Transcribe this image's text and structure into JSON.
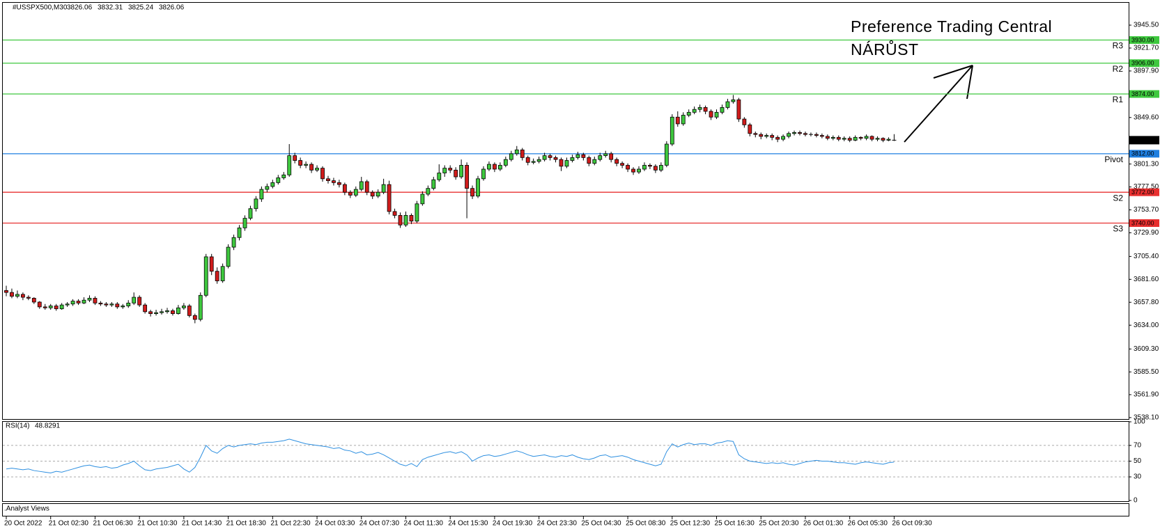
{
  "chart_data": {
    "type": "candlestick",
    "symbol": "#USSPX500,M30",
    "categories": [
      "20 Oct 2022",
      null,
      null,
      null,
      null,
      null,
      null,
      null,
      "21 Oct 02:30",
      null,
      null,
      null,
      null,
      null,
      null,
      null,
      "21 Oct 06:30",
      null,
      null,
      null,
      null,
      null,
      null,
      null,
      "21 Oct 10:30",
      null,
      null,
      null,
      null,
      null,
      null,
      null,
      "21 Oct 14:30",
      null,
      null,
      null,
      null,
      null,
      null,
      null,
      "21 Oct 18:30",
      null,
      null,
      null,
      null,
      null,
      null,
      null,
      "21 Oct 22:30",
      null,
      null,
      null,
      null,
      null,
      null,
      null,
      "24 Oct 03:30",
      null,
      null,
      null,
      null,
      null,
      null,
      null,
      "24 Oct 07:30",
      null,
      null,
      null,
      null,
      null,
      null,
      null,
      "24 Oct 11:30",
      null,
      null,
      null,
      null,
      null,
      null,
      null,
      "24 Oct 15:30",
      null,
      null,
      null,
      null,
      null,
      null,
      null,
      "24 Oct 19:30",
      null,
      null,
      null,
      null,
      null,
      null,
      null,
      "24 Oct 23:30",
      null,
      null,
      null,
      null,
      null,
      null,
      null,
      "25 Oct 04:30",
      null,
      null,
      null,
      null,
      null,
      null,
      null,
      "25 Oct 08:30",
      null,
      null,
      null,
      null,
      null,
      null,
      null,
      "25 Oct 12:30",
      null,
      null,
      null,
      null,
      null,
      null,
      null,
      "25 Oct 16:30",
      null,
      null,
      null,
      null,
      null,
      null,
      null,
      "25 Oct 20:30",
      null,
      null,
      null,
      null,
      null,
      null,
      null,
      "26 Oct 01:30",
      null,
      null,
      null,
      null,
      null,
      null,
      null,
      "26 Oct 05:30",
      null,
      null,
      null,
      null,
      null,
      null,
      null,
      "26 Oct 09:30"
    ],
    "candles": [
      [
        3670,
        3675,
        3664,
        3668
      ],
      [
        3668,
        3672,
        3662,
        3664
      ],
      [
        3664,
        3670,
        3662,
        3666
      ],
      [
        3666,
        3668,
        3660,
        3663
      ],
      [
        3663,
        3665,
        3660,
        3662
      ],
      [
        3662,
        3663,
        3656,
        3658
      ],
      [
        3658,
        3659,
        3651,
        3653
      ],
      [
        3653,
        3656,
        3650,
        3652
      ],
      [
        3652,
        3656,
        3650,
        3654
      ],
      [
        3654,
        3656,
        3649,
        3651
      ],
      [
        3651,
        3657,
        3650,
        3655
      ],
      [
        3655,
        3658,
        3653,
        3656
      ],
      [
        3656,
        3661,
        3654,
        3659
      ],
      [
        3659,
        3661,
        3655,
        3657
      ],
      [
        3657,
        3663,
        3656,
        3660
      ],
      [
        3660,
        3665,
        3658,
        3662
      ],
      [
        3662,
        3664,
        3655,
        3657
      ],
      [
        3657,
        3659,
        3654,
        3656
      ],
      [
        3656,
        3658,
        3653,
        3655
      ],
      [
        3655,
        3658,
        3653,
        3656
      ],
      [
        3656,
        3658,
        3651,
        3653
      ],
      [
        3653,
        3656,
        3651,
        3654
      ],
      [
        3654,
        3660,
        3652,
        3657
      ],
      [
        3657,
        3668,
        3655,
        3663
      ],
      [
        3663,
        3665,
        3653,
        3655
      ],
      [
        3655,
        3657,
        3646,
        3648
      ],
      [
        3648,
        3650,
        3643,
        3646
      ],
      [
        3646,
        3650,
        3644,
        3647
      ],
      [
        3647,
        3651,
        3645,
        3648
      ],
      [
        3648,
        3652,
        3646,
        3649
      ],
      [
        3649,
        3651,
        3644,
        3646
      ],
      [
        3646,
        3655,
        3645,
        3652
      ],
      [
        3652,
        3657,
        3650,
        3654
      ],
      [
        3654,
        3656,
        3642,
        3644
      ],
      [
        3644,
        3646,
        3636,
        3640
      ],
      [
        3640,
        3668,
        3638,
        3665
      ],
      [
        3665,
        3708,
        3663,
        3705
      ],
      [
        3705,
        3708,
        3686,
        3690
      ],
      [
        3690,
        3694,
        3677,
        3680
      ],
      [
        3680,
        3698,
        3678,
        3695
      ],
      [
        3695,
        3718,
        3693,
        3715
      ],
      [
        3715,
        3728,
        3712,
        3725
      ],
      [
        3725,
        3738,
        3722,
        3735
      ],
      [
        3735,
        3748,
        3732,
        3745
      ],
      [
        3745,
        3758,
        3743,
        3755
      ],
      [
        3755,
        3768,
        3752,
        3765
      ],
      [
        3765,
        3778,
        3762,
        3775
      ],
      [
        3775,
        3781,
        3772,
        3778
      ],
      [
        3778,
        3785,
        3776,
        3782
      ],
      [
        3782,
        3790,
        3780,
        3787
      ],
      [
        3787,
        3793,
        3785,
        3790
      ],
      [
        3790,
        3822,
        3788,
        3810
      ],
      [
        3810,
        3813,
        3802,
        3805
      ],
      [
        3805,
        3808,
        3797,
        3800
      ],
      [
        3800,
        3804,
        3797,
        3801
      ],
      [
        3801,
        3803,
        3792,
        3795
      ],
      [
        3795,
        3800,
        3793,
        3797
      ],
      [
        3797,
        3799,
        3783,
        3786
      ],
      [
        3786,
        3789,
        3781,
        3784
      ],
      [
        3784,
        3787,
        3779,
        3782
      ],
      [
        3782,
        3785,
        3777,
        3780
      ],
      [
        3780,
        3782,
        3769,
        3772
      ],
      [
        3772,
        3774,
        3766,
        3769
      ],
      [
        3769,
        3778,
        3767,
        3775
      ],
      [
        3775,
        3788,
        3773,
        3783
      ],
      [
        3783,
        3785,
        3769,
        3772
      ],
      [
        3772,
        3774,
        3765,
        3768
      ],
      [
        3768,
        3775,
        3766,
        3772
      ],
      [
        3772,
        3786,
        3770,
        3780
      ],
      [
        3780,
        3784,
        3749,
        3752
      ],
      [
        3752,
        3755,
        3745,
        3748
      ],
      [
        3748,
        3751,
        3735,
        3738
      ],
      [
        3738,
        3752,
        3736,
        3748
      ],
      [
        3748,
        3750,
        3739,
        3742
      ],
      [
        3742,
        3763,
        3740,
        3760
      ],
      [
        3760,
        3773,
        3758,
        3770
      ],
      [
        3770,
        3779,
        3768,
        3776
      ],
      [
        3776,
        3788,
        3774,
        3785
      ],
      [
        3785,
        3801,
        3783,
        3792
      ],
      [
        3792,
        3800,
        3788,
        3797
      ],
      [
        3797,
        3800,
        3792,
        3795
      ],
      [
        3795,
        3798,
        3785,
        3788
      ],
      [
        3788,
        3806,
        3786,
        3800
      ],
      [
        3800,
        3803,
        3745,
        3776
      ],
      [
        3776,
        3779,
        3765,
        3768
      ],
      [
        3768,
        3789,
        3766,
        3786
      ],
      [
        3786,
        3799,
        3784,
        3796
      ],
      [
        3796,
        3804,
        3794,
        3801
      ],
      [
        3801,
        3803,
        3793,
        3796
      ],
      [
        3796,
        3803,
        3794,
        3800
      ],
      [
        3800,
        3809,
        3798,
        3806
      ],
      [
        3806,
        3815,
        3804,
        3812
      ],
      [
        3812,
        3820,
        3810,
        3816
      ],
      [
        3816,
        3818,
        3805,
        3808
      ],
      [
        3808,
        3810,
        3800,
        3803
      ],
      [
        3803,
        3807,
        3801,
        3804
      ],
      [
        3804,
        3809,
        3802,
        3806
      ],
      [
        3806,
        3813,
        3804,
        3810
      ],
      [
        3810,
        3812,
        3805,
        3808
      ],
      [
        3808,
        3810,
        3803,
        3806
      ],
      [
        3806,
        3808,
        3794,
        3799
      ],
      [
        3799,
        3808,
        3797,
        3805
      ],
      [
        3805,
        3811,
        3803,
        3808
      ],
      [
        3808,
        3814,
        3806,
        3811
      ],
      [
        3811,
        3813,
        3805,
        3808
      ],
      [
        3808,
        3810,
        3799,
        3802
      ],
      [
        3802,
        3809,
        3800,
        3806
      ],
      [
        3806,
        3813,
        3804,
        3810
      ],
      [
        3810,
        3815,
        3808,
        3812
      ],
      [
        3812,
        3814,
        3803,
        3806
      ],
      [
        3806,
        3808,
        3799,
        3802
      ],
      [
        3802,
        3804,
        3797,
        3800
      ],
      [
        3800,
        3802,
        3793,
        3796
      ],
      [
        3796,
        3798,
        3790,
        3793
      ],
      [
        3793,
        3799,
        3791,
        3796
      ],
      [
        3796,
        3803,
        3794,
        3800
      ],
      [
        3800,
        3802,
        3796,
        3799
      ],
      [
        3799,
        3801,
        3792,
        3795
      ],
      [
        3795,
        3803,
        3793,
        3800
      ],
      [
        3800,
        3825,
        3798,
        3822
      ],
      [
        3822,
        3853,
        3820,
        3850
      ],
      [
        3850,
        3856,
        3840,
        3843
      ],
      [
        3843,
        3855,
        3841,
        3852
      ],
      [
        3852,
        3858,
        3850,
        3855
      ],
      [
        3855,
        3861,
        3853,
        3858
      ],
      [
        3858,
        3863,
        3855,
        3860
      ],
      [
        3860,
        3862,
        3853,
        3856
      ],
      [
        3856,
        3858,
        3847,
        3850
      ],
      [
        3850,
        3858,
        3848,
        3855
      ],
      [
        3855,
        3863,
        3853,
        3860
      ],
      [
        3860,
        3869,
        3858,
        3866
      ],
      [
        3866,
        3873,
        3864,
        3868
      ],
      [
        3868,
        3870,
        3845,
        3848
      ],
      [
        3848,
        3850,
        3839,
        3842
      ],
      [
        3842,
        3844,
        3830,
        3833
      ],
      [
        3833,
        3835,
        3829,
        3832
      ],
      [
        3832,
        3834,
        3827,
        3830
      ],
      [
        3830,
        3833,
        3828,
        3831
      ],
      [
        3831,
        3833,
        3826,
        3829
      ],
      [
        3829,
        3831,
        3824,
        3827
      ],
      [
        3827,
        3832,
        3825,
        3830
      ],
      [
        3830,
        3835,
        3828,
        3833
      ],
      [
        3833,
        3836,
        3831,
        3834
      ],
      [
        3834,
        3836,
        3831,
        3833
      ],
      [
        3833,
        3835,
        3830,
        3832
      ],
      [
        3832,
        3834,
        3830,
        3832
      ],
      [
        3832,
        3834,
        3829,
        3831
      ],
      [
        3831,
        3833,
        3828,
        3830
      ],
      [
        3830,
        3832,
        3826,
        3828
      ],
      [
        3828,
        3831,
        3826,
        3829
      ],
      [
        3829,
        3831,
        3825,
        3827
      ],
      [
        3827,
        3830,
        3825,
        3828
      ],
      [
        3828,
        3830,
        3824,
        3826
      ],
      [
        3826,
        3831,
        3825,
        3829
      ],
      [
        3829,
        3830,
        3826,
        3828
      ],
      [
        3828,
        3832,
        3826,
        3830
      ],
      [
        3830,
        3831,
        3825,
        3827
      ],
      [
        3827,
        3830,
        3825,
        3828
      ],
      [
        3828,
        3829,
        3824,
        3826
      ],
      [
        3826,
        3829,
        3825,
        3827
      ],
      [
        3826.06,
        3832.31,
        3825.24,
        3826.06
      ]
    ],
    "colors": {
      "up": "#3ec83e",
      "down": "#d01c1c",
      "wick": "#000000"
    },
    "ylim": [
      3536.6,
      3969.4
    ],
    "yticks": [
      {
        "value": 3945.5,
        "label": "3945.50"
      },
      {
        "value": 3921.7,
        "label": "3921.70"
      },
      {
        "value": 3897.9,
        "label": "3897.90"
      },
      {
        "value": 3849.6,
        "label": "3849.60"
      },
      {
        "value": 3801.3,
        "label": "3801.30"
      },
      {
        "value": 3777.5,
        "label": "3777.50"
      },
      {
        "value": 3753.7,
        "label": "3753.70"
      },
      {
        "value": 3729.9,
        "label": "3729.90"
      },
      {
        "value": 3705.4,
        "label": "3705.40"
      },
      {
        "value": 3681.6,
        "label": "3681.60"
      },
      {
        "value": 3657.8,
        "label": "3657.80"
      },
      {
        "value": 3634,
        "label": "3634.00"
      },
      {
        "value": 3609.3,
        "label": "3609.30"
      },
      {
        "value": 3585.5,
        "label": "3585.50"
      },
      {
        "value": 3561.9,
        "label": "3561.90"
      },
      {
        "value": 3538.1,
        "label": "3538.10"
      }
    ],
    "levels": [
      {
        "name": "R3",
        "value": 3930,
        "label": "3930.00",
        "color": "#3ec83e"
      },
      {
        "name": "R2",
        "value": 3906,
        "label": "3906.00",
        "color": "#3ec83e"
      },
      {
        "name": "R1",
        "value": 3874,
        "label": "3874.00",
        "color": "#3ec83e"
      },
      {
        "name": "Pivot",
        "value": 3812,
        "label": "3812.00",
        "color": "#1e7fe0"
      },
      {
        "name": "S2",
        "value": 3772,
        "label": "3772.00",
        "color": "#e83030"
      },
      {
        "name": "S3",
        "value": 3740,
        "label": "3740.00",
        "color": "#e83030"
      }
    ],
    "annotation": [
      "Preference Trading Central",
      "NÁRŮST"
    ],
    "annotation_color": "#3ec83e",
    "indicator": {
      "type": "line",
      "name": "RSI(14)",
      "color": "#2b8ee0",
      "ylim": [
        0,
        100
      ],
      "yticks": [
        100,
        70,
        50,
        30,
        0
      ],
      "levels": [
        70,
        50,
        30
      ],
      "values": [
        40,
        41,
        40,
        39,
        40,
        38,
        37,
        36,
        35,
        37,
        36,
        38,
        40,
        42,
        44,
        45,
        43,
        42,
        43,
        41,
        42,
        45,
        47,
        50,
        44,
        39,
        38,
        40,
        41,
        42,
        44,
        46,
        40,
        36,
        42,
        55,
        70,
        63,
        60,
        66,
        70,
        68,
        70,
        71,
        72,
        71,
        73,
        74,
        74,
        75,
        76,
        78,
        76,
        74,
        72,
        71,
        70,
        69,
        68,
        66,
        67,
        64,
        63,
        60,
        62,
        58,
        59,
        61,
        58,
        54,
        50,
        46,
        44,
        47,
        43,
        52,
        55,
        57,
        59,
        61,
        62,
        60,
        62,
        58,
        50,
        54,
        57,
        58,
        56,
        57,
        59,
        61,
        63,
        61,
        58,
        56,
        57,
        58,
        56,
        55,
        57,
        56,
        58,
        55,
        53,
        52,
        54,
        57,
        58,
        55,
        56,
        57,
        55,
        52,
        50,
        48,
        46,
        44,
        46,
        62,
        72,
        68,
        71,
        73,
        71,
        72,
        72,
        70,
        73,
        74,
        76,
        75,
        58,
        53,
        50,
        49,
        48,
        47,
        48,
        47,
        48,
        46,
        45,
        47,
        49,
        50,
        51,
        50,
        50,
        49,
        48,
        48,
        47,
        46,
        48,
        49,
        48,
        47,
        46,
        48,
        48.8291
      ]
    },
    "footer_panel": ".Analyst Views"
  }
}
